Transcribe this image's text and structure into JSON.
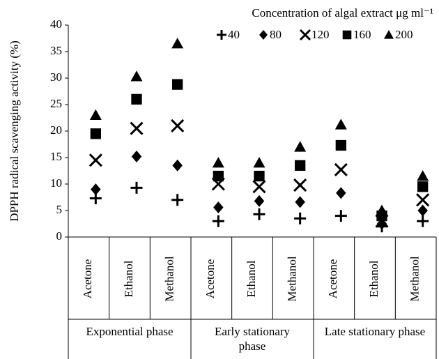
{
  "chart_data": {
    "type": "scatter",
    "y_label": "DPPH radical scavenging activity (%)",
    "legend_title": "Concentration of algal extract μg ml⁻¹",
    "groups": [
      {
        "name": "Exponential phase",
        "categories": [
          "Acetone",
          "Ethanol",
          "Methanol"
        ]
      },
      {
        "name": "Early stationary phase",
        "categories": [
          "Acetone",
          "Ethanol",
          "Methanol"
        ]
      },
      {
        "name": "Late stationary phase",
        "categories": [
          "Acetone",
          "Ethanol",
          "Methanol"
        ]
      }
    ],
    "series": [
      {
        "name": "40",
        "marker": "plus",
        "color": "#000000",
        "values": [
          7.3,
          9.3,
          7,
          3,
          4.3,
          3.5,
          4,
          2,
          3
        ]
      },
      {
        "name": "80",
        "marker": "diamond",
        "color": "#000000",
        "values": [
          9,
          15.2,
          13.5,
          5.6,
          6.8,
          6.6,
          8.3,
          2.5,
          5
        ]
      },
      {
        "name": "120",
        "marker": "x",
        "color": "#000000",
        "values": [
          14.5,
          20.5,
          21,
          10,
          9.5,
          9.8,
          12.7,
          3,
          7
        ]
      },
      {
        "name": "160",
        "marker": "square",
        "color": "#000000",
        "values": [
          19.5,
          26,
          28.8,
          11.5,
          11.5,
          13.5,
          17.3,
          4,
          9.5
        ]
      },
      {
        "name": "200",
        "marker": "triangle",
        "color": "#000000",
        "values": [
          23,
          30.3,
          36.5,
          14,
          14,
          17,
          21.2,
          5,
          11.5
        ]
      }
    ],
    "ylim": [
      0,
      40
    ],
    "yticks": [
      0,
      5,
      10,
      15,
      20,
      25,
      30,
      35,
      40
    ]
  }
}
